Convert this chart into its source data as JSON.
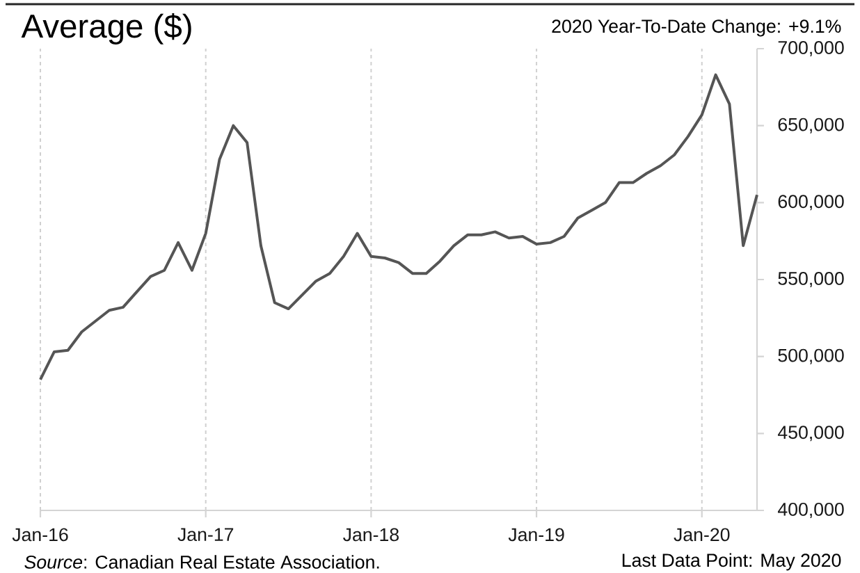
{
  "chart_data": {
    "type": "line",
    "title": "Average ($)",
    "subtitle": "2020 Year-To-Date Change: +9.1%",
    "annotations": [
      "*Source*: Canadian Real Estate Association.",
      "Last Data Point: May 2020"
    ],
    "x": [
      "2016-01",
      "2016-02",
      "2016-03",
      "2016-04",
      "2016-05",
      "2016-06",
      "2016-07",
      "2016-08",
      "2016-09",
      "2016-10",
      "2016-11",
      "2016-12",
      "2017-01",
      "2017-02",
      "2017-03",
      "2017-04",
      "2017-05",
      "2017-06",
      "2017-07",
      "2017-08",
      "2017-09",
      "2017-10",
      "2017-11",
      "2017-12",
      "2018-01",
      "2018-02",
      "2018-03",
      "2018-04",
      "2018-05",
      "2018-06",
      "2018-07",
      "2018-08",
      "2018-09",
      "2018-10",
      "2018-11",
      "2018-12",
      "2019-01",
      "2019-02",
      "2019-03",
      "2019-04",
      "2019-05",
      "2019-06",
      "2019-07",
      "2019-08",
      "2019-09",
      "2019-10",
      "2019-11",
      "2019-12",
      "2020-01",
      "2020-02",
      "2020-03",
      "2020-04",
      "2020-05"
    ],
    "values": [
      485000,
      503000,
      504000,
      516000,
      523000,
      530000,
      532000,
      542000,
      552000,
      556000,
      574000,
      556000,
      580000,
      628000,
      650000,
      639000,
      572000,
      535000,
      531000,
      540000,
      549000,
      554000,
      565000,
      580000,
      565000,
      564000,
      561000,
      554000,
      554000,
      562000,
      572000,
      579000,
      579000,
      581000,
      577000,
      578000,
      573000,
      574000,
      578000,
      590000,
      595000,
      600000,
      613000,
      613000,
      619000,
      624000,
      631000,
      643000,
      657000,
      683000,
      664000,
      572000,
      605000
    ],
    "color": "#555555",
    "xlim": [
      "2016-01",
      "2020-05"
    ],
    "xticks": [
      {
        "value": "2016-01",
        "label": "Jan-16"
      },
      {
        "value": "2017-01",
        "label": "Jan-17"
      },
      {
        "value": "2018-01",
        "label": "Jan-18"
      },
      {
        "value": "2019-01",
        "label": "Jan-19"
      },
      {
        "value": "2020-01",
        "label": "Jan-20"
      }
    ],
    "ylim": [
      400000,
      700000
    ],
    "yticks": [
      {
        "value": 400000,
        "label": "400,000"
      },
      {
        "value": 450000,
        "label": "450,000"
      },
      {
        "value": 500000,
        "label": "500,000"
      },
      {
        "value": 550000,
        "label": "550,000"
      },
      {
        "value": 600000,
        "label": "600,000"
      },
      {
        "value": 650000,
        "label": "650,000"
      },
      {
        "value": 700000,
        "label": "700,000"
      }
    ],
    "grid": "x",
    "marker": "none",
    "line_style": "solid"
  }
}
